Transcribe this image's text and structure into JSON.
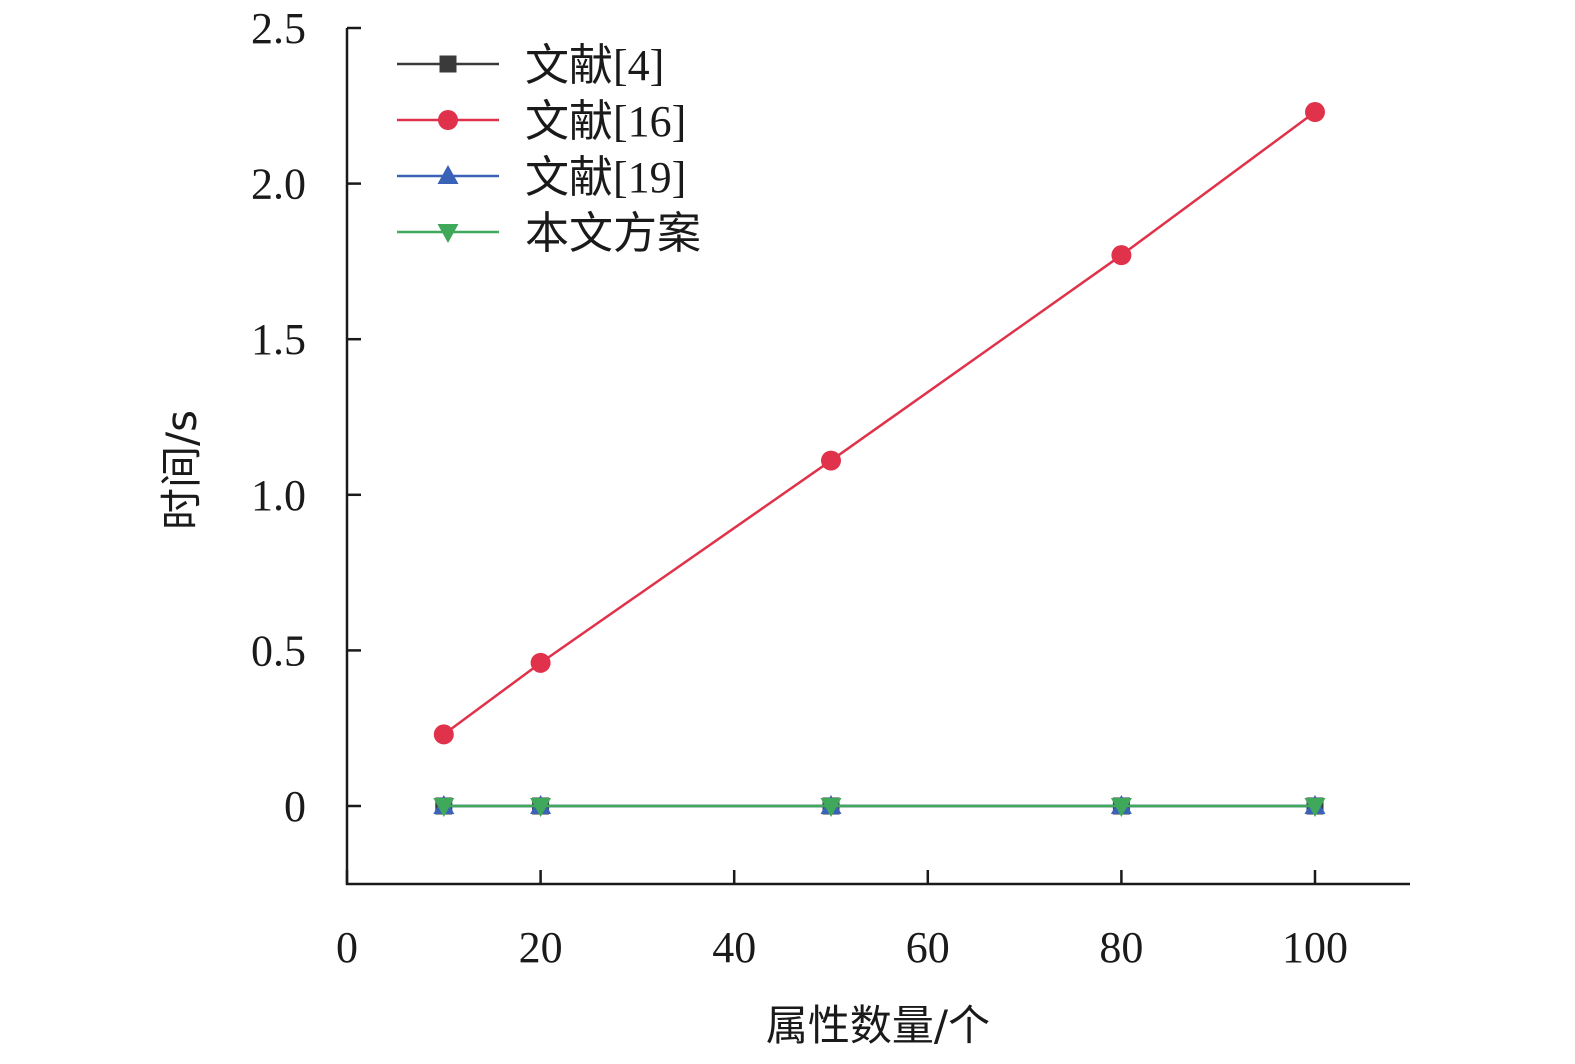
{
  "chart_data": {
    "type": "line",
    "xlabel": "属性数量/个",
    "ylabel": "时间/s",
    "xlim": [
      0,
      110
    ],
    "ylim": [
      -0.25,
      2.5
    ],
    "x_ticks": [
      0,
      20,
      40,
      60,
      80,
      100
    ],
    "x_tick_labels": [
      "0",
      "20",
      "40",
      "60",
      "80",
      "100"
    ],
    "y_ticks": [
      0,
      0.5,
      1.0,
      1.5,
      2.0,
      2.5
    ],
    "y_tick_labels": [
      "0",
      "0.5",
      "1.0",
      "1.5",
      "2.0",
      "2.5"
    ],
    "grid": false,
    "legend_position": "top-left",
    "x": [
      10,
      20,
      50,
      80,
      100
    ],
    "series": [
      {
        "name": "文献[4]",
        "values": [
          0,
          0,
          0,
          0,
          0
        ],
        "color": "#3a3a3a",
        "marker": "square"
      },
      {
        "name": "文献[16]",
        "values": [
          0.23,
          0.46,
          1.11,
          1.77,
          2.23
        ],
        "color": "#e0324a",
        "marker": "circle"
      },
      {
        "name": "文献[19]",
        "values": [
          0,
          0,
          0,
          0,
          0
        ],
        "color": "#3a62b8",
        "marker": "triangle-up"
      },
      {
        "name": "本文方案",
        "values": [
          0,
          0,
          0,
          0,
          0
        ],
        "color": "#3fa85a",
        "marker": "triangle-down"
      }
    ]
  }
}
